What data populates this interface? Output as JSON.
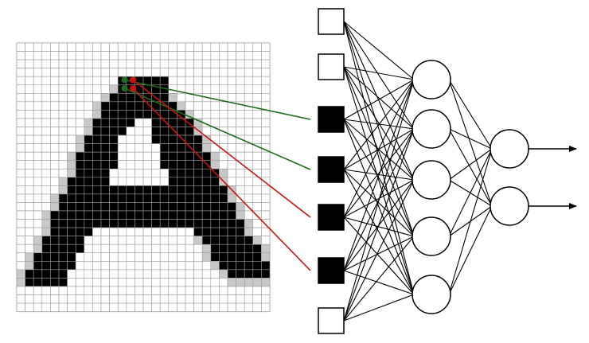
{
  "colors": {
    "background": "#ffffff",
    "grid_line": "#9a9a9a",
    "grid_fill": "#ffffff",
    "glyph_black": "#000000",
    "glyph_shadow": "#c8c8c8",
    "green_connection": "#1e6b1e",
    "red_connection": "#cc1111",
    "network_line": "#000000",
    "node_fill": "#ffffff"
  },
  "pixel_grid": {
    "columns": 30,
    "rows": 32,
    "glyph": "A",
    "cell_legend": {
      "white": 0,
      "shadow": 1,
      "black": 2
    },
    "cells": [
      "000000000000000000000000000000",
      "000000000000000000000000000000",
      "000000000000000000000000000000",
      "000000000000000000000000000000",
      "000000000000222222000000000000",
      "000000000001222222000000000000",
      "000000000012222222100000000000",
      "000000000122222222210000000000",
      "000000000122222222221000000000",
      "000000001222220022222100000000",
      "000000001222200022222100000000",
      "000000012222000022222210000000",
      "000000012222000002222210000000",
      "000000122222000002222221000000",
      "000000122222000002222221000000",
      "000000122220000000222222100000",
      "000001222220000000222222100000",
      "000001222222222222222222210000",
      "000012222222222222222222210000",
      "000012222222222222222222221000",
      "000122222222222222222222221000",
      "000122222222222222222222222100",
      "000122222000000000000222222100",
      "001222220000000000000122222210",
      "001222220000000000000012222221",
      "012222200000000000000012222221",
      "012222200000000000000001222222",
      "122222000000000000000000122222",
      "122222000000000000000000011111",
      "000000000000000000000000000000",
      "000000000000000000000000000000",
      "000000000000000000000000000000"
    ]
  },
  "input_nodes": [
    {
      "state": "white"
    },
    {
      "state": "white"
    },
    {
      "state": "black"
    },
    {
      "state": "black"
    },
    {
      "state": "black"
    },
    {
      "state": "black"
    },
    {
      "state": "white"
    }
  ],
  "hidden_nodes": 5,
  "output_nodes": 2,
  "connections_from_grid": [
    {
      "color": "green",
      "grid_cell": [
        12,
        4
      ],
      "input_node": 2
    },
    {
      "color": "green",
      "grid_cell": [
        12,
        5
      ],
      "input_node": 3
    },
    {
      "color": "red",
      "grid_cell": [
        13,
        4
      ],
      "input_node": 4
    },
    {
      "color": "red",
      "grid_cell": [
        13,
        5
      ],
      "input_node": 5
    }
  ]
}
